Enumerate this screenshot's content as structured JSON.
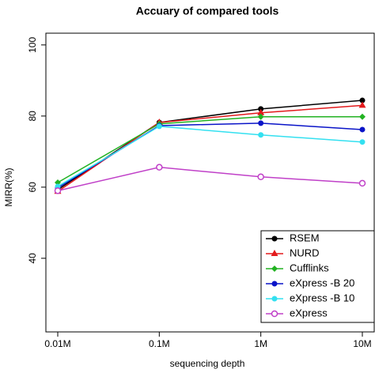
{
  "chart_data": {
    "type": "line",
    "title": "Accuary of compared tools",
    "x_label": "sequencing depth",
    "y_label": "MIRR(%)",
    "categories": [
      "0.01M",
      "0.1M",
      "1M",
      "10M"
    ],
    "ylim": [
      19.3,
      103.3
    ],
    "yticks": [
      40,
      60,
      80,
      100
    ],
    "legend": "bottom-right",
    "series": [
      {
        "name": "RSEM",
        "color": "#000000",
        "marker": "circle",
        "values": [
          59.3,
          78.2,
          82.0,
          84.4
        ]
      },
      {
        "name": "NURD",
        "color": "#e31a1c",
        "marker": "triangle",
        "values": [
          58.8,
          78.2,
          80.9,
          83.0
        ]
      },
      {
        "name": "Cufflinks",
        "color": "#22b222",
        "marker": "diamond",
        "values": [
          61.3,
          77.8,
          79.8,
          79.8
        ]
      },
      {
        "name": "eXpress -B 20",
        "color": "#0a14c8",
        "marker": "circle",
        "values": [
          59.8,
          77.3,
          78.0,
          76.2
        ]
      },
      {
        "name": "eXpress -B 10",
        "color": "#33e0f0",
        "marker": "circle",
        "values": [
          60.2,
          77.1,
          74.7,
          72.7
        ]
      },
      {
        "name": "eXpress",
        "color": "#c040c8",
        "marker": "open-circle",
        "values": [
          59.0,
          65.6,
          62.9,
          61.1
        ]
      }
    ]
  }
}
